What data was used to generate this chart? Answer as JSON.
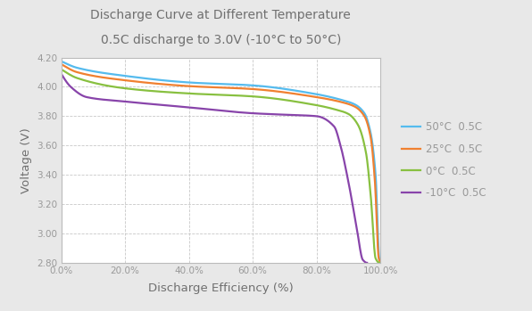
{
  "title_line1": "Discharge Curve at Different Temperature",
  "title_line2": "0.5C discharge to 3.0V (-10°C to 50°C)",
  "xlabel": "Discharge Efficiency (%)",
  "ylabel": "Voltage (V)",
  "xlim": [
    0.0,
    1.0
  ],
  "ylim": [
    2.8,
    4.2
  ],
  "yticks": [
    2.8,
    3.0,
    3.2,
    3.4,
    3.6,
    3.8,
    4.0,
    4.2
  ],
  "xticks": [
    0.0,
    0.2,
    0.4,
    0.6,
    0.8,
    1.0
  ],
  "background_color": "#e8e8e8",
  "plot_bg_color": "#ffffff",
  "grid_color": "#c8c8c8",
  "title_color": "#707070",
  "axis_label_color": "#707070",
  "tick_color": "#999999",
  "curves": [
    {
      "label": "50°C  0.5C",
      "color": "#55bbee",
      "points_x": [
        0.0,
        0.05,
        0.2,
        0.4,
        0.6,
        0.8,
        0.88,
        0.92,
        0.95,
        0.97,
        0.985,
        0.997,
        1.002
      ],
      "points_v": [
        4.175,
        4.13,
        4.075,
        4.03,
        4.01,
        3.95,
        3.91,
        3.88,
        3.82,
        3.68,
        3.4,
        2.82,
        2.8
      ]
    },
    {
      "label": "25°C  0.5C",
      "color": "#f08030",
      "points_x": [
        0.0,
        0.05,
        0.2,
        0.4,
        0.6,
        0.8,
        0.88,
        0.92,
        0.95,
        0.97,
        0.983,
        0.995,
        1.002
      ],
      "points_v": [
        4.155,
        4.1,
        4.045,
        4.005,
        3.985,
        3.93,
        3.895,
        3.865,
        3.8,
        3.65,
        3.35,
        2.83,
        2.8
      ]
    },
    {
      "label": "0°C  0.5C",
      "color": "#88c040",
      "points_x": [
        0.0,
        0.05,
        0.2,
        0.4,
        0.6,
        0.8,
        0.86,
        0.9,
        0.93,
        0.955,
        0.97,
        0.985,
        0.997
      ],
      "points_v": [
        4.12,
        4.06,
        3.99,
        3.955,
        3.935,
        3.875,
        3.845,
        3.815,
        3.74,
        3.55,
        3.25,
        2.83,
        2.8
      ]
    },
    {
      "label": "-10°C  0.5C",
      "color": "#8844aa",
      "points_x": [
        0.0,
        0.03,
        0.08,
        0.2,
        0.4,
        0.6,
        0.7,
        0.8,
        0.855,
        0.875,
        0.9,
        0.925,
        0.945,
        0.958
      ],
      "points_v": [
        4.09,
        4.0,
        3.93,
        3.9,
        3.86,
        3.82,
        3.81,
        3.8,
        3.73,
        3.6,
        3.35,
        3.05,
        2.82,
        2.8
      ]
    }
  ]
}
